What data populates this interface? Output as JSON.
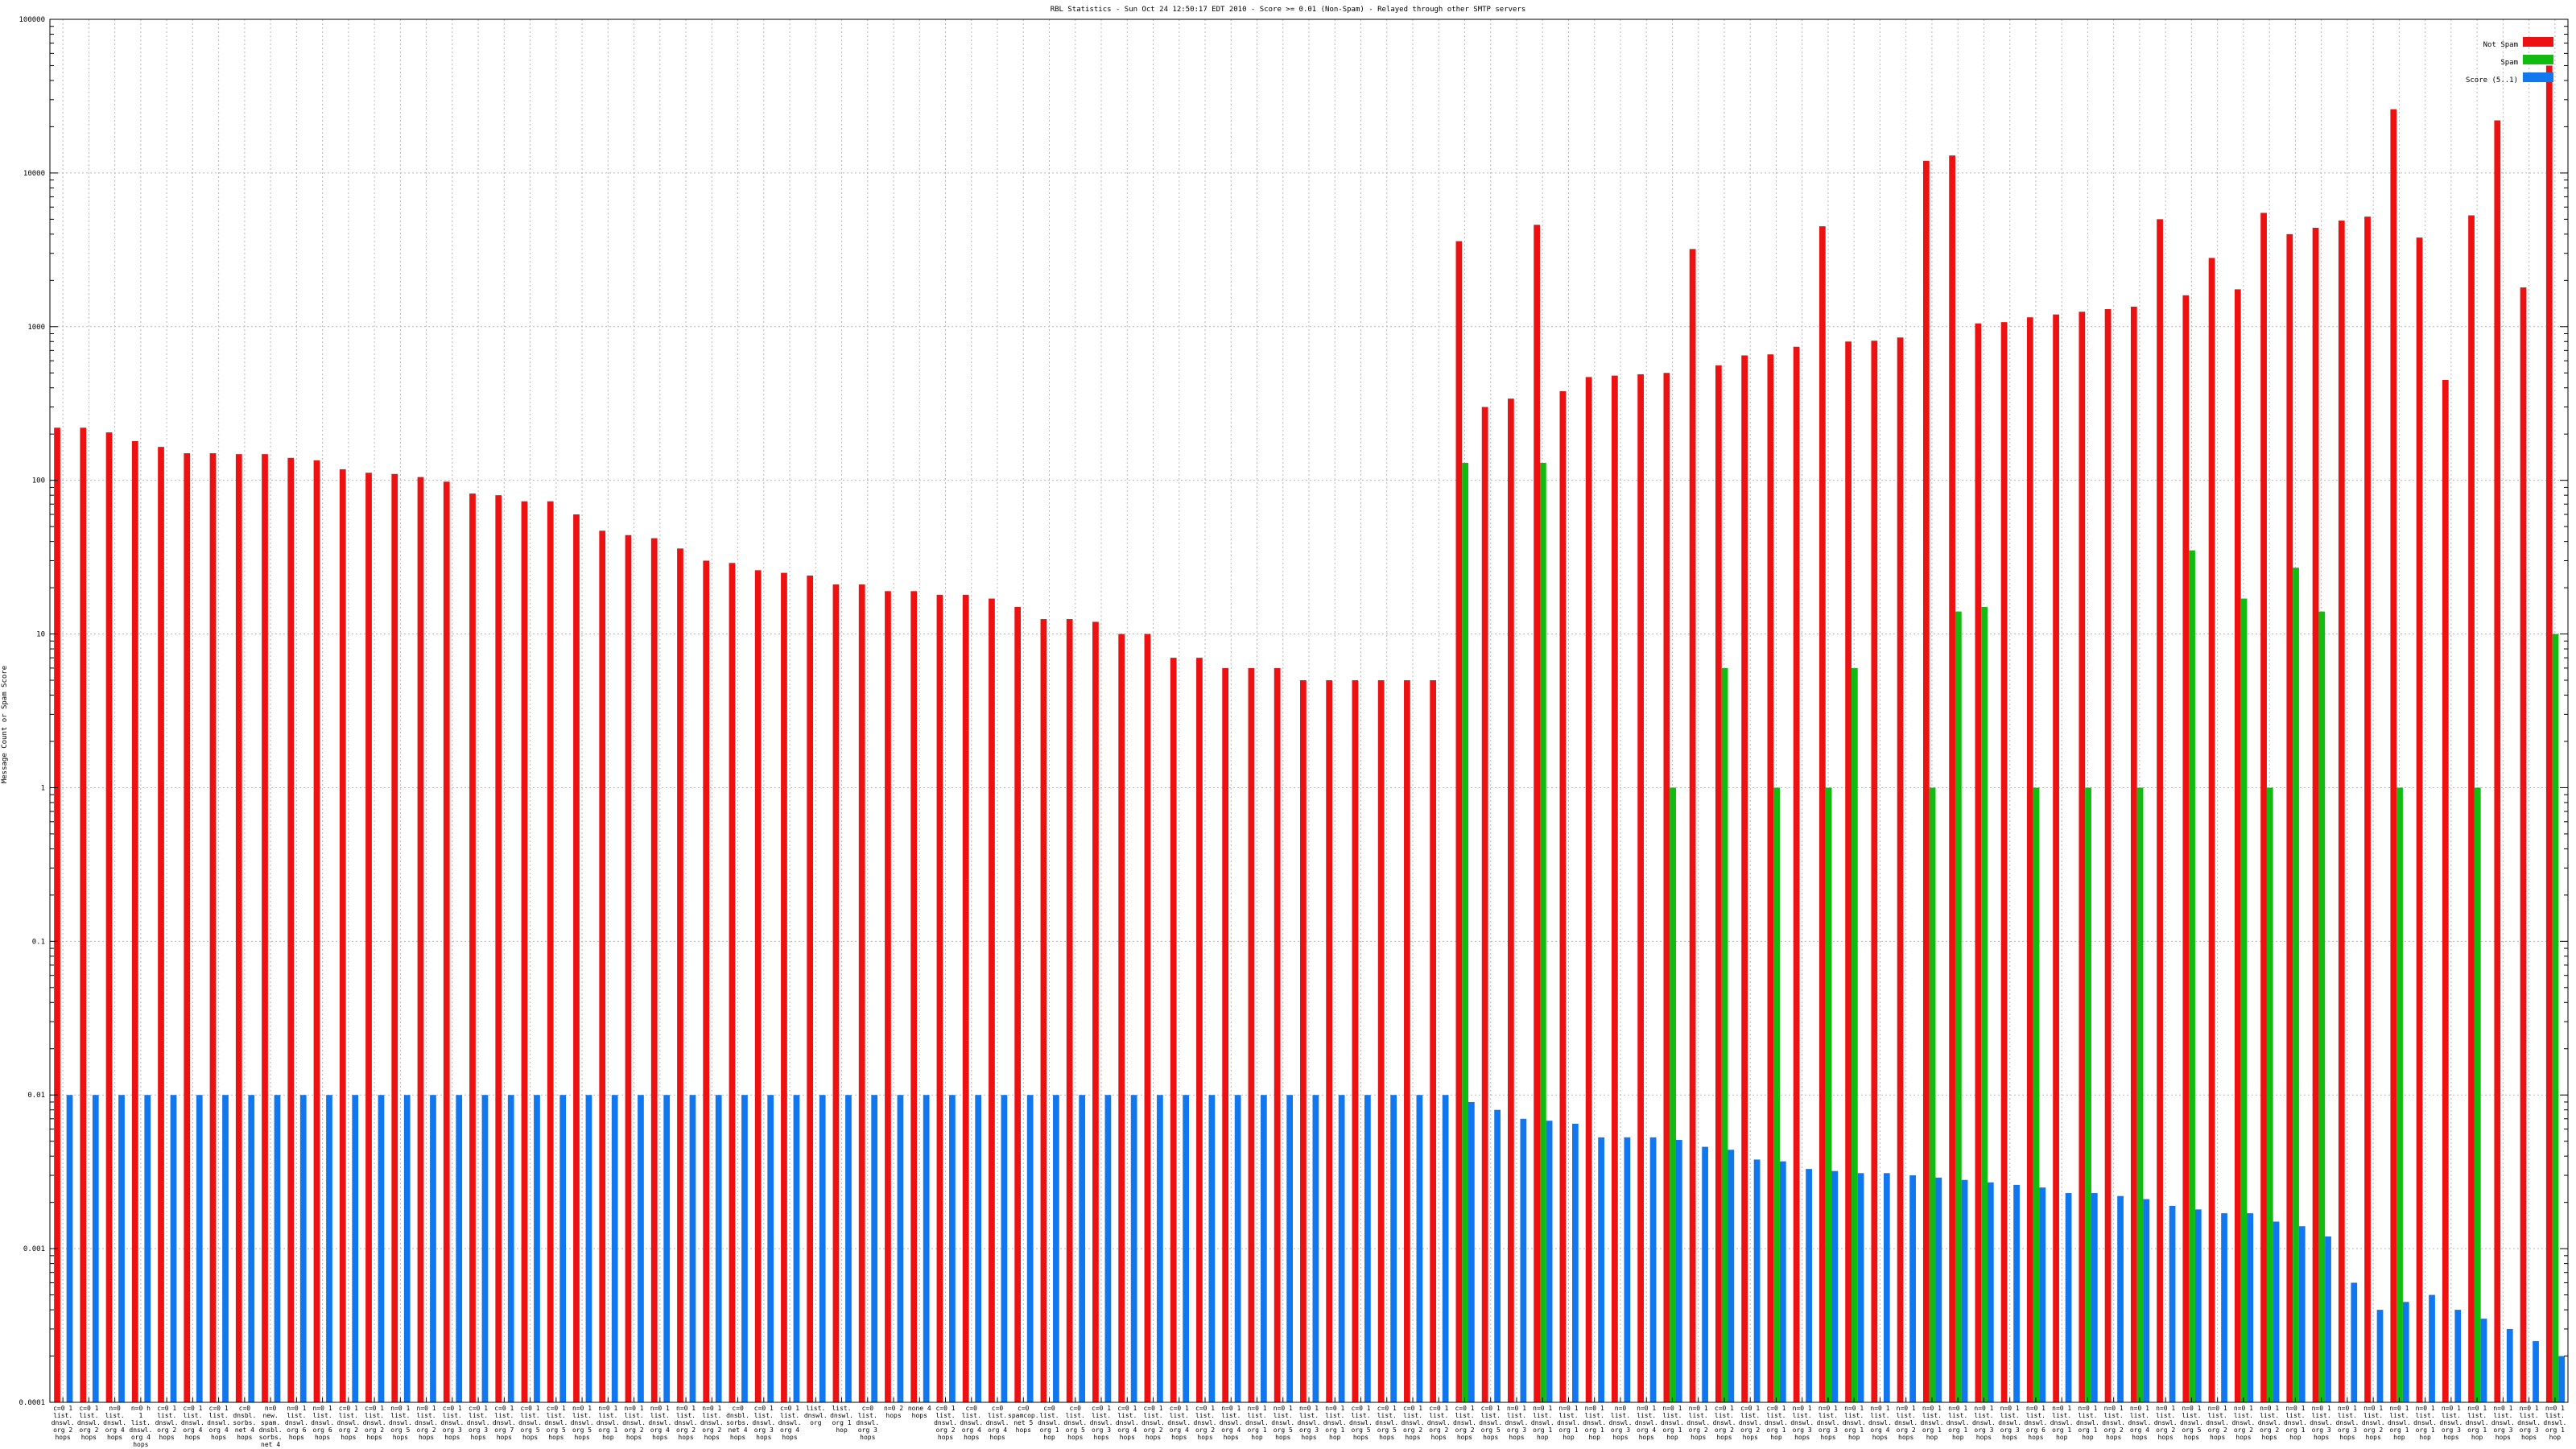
{
  "chart_data": {
    "type": "bar",
    "title": "RBL Statistics - Sun Oct 24 12:50:17 EDT 2010 - Score >= 0.01 (Non-Spam) - Relayed through other SMTP servers",
    "xlabel": "",
    "ylabel": "Message Count or Spam Score",
    "yscale": "log",
    "ylim": [
      0.0001,
      100000
    ],
    "yticks": [
      "0.0001",
      "0.001",
      "0.01",
      "0.1",
      "1",
      "10",
      "100",
      "1000",
      "10000",
      "100000"
    ],
    "grid": true,
    "legend_position": "top-right",
    "colors": {
      "not_spam": "#ee1111",
      "spam": "#11bb11",
      "score": "#1177ee"
    },
    "categories": [
      "c=0 1 list. dnswl. org 2 hops",
      "c=0 1 list. dnswl. org 2 hops",
      "n=0 list. dnswl. org 4 hops",
      "n=0 h 1 list. dnswl. org 4 hops",
      "c=0 1 list. dnswl. org 2 hops",
      "c=0 1 list. dnswl. org 4 hops",
      "c=0 1 list. dnswl. org 4 hops",
      "c=0 dnsbl. sorbs. net 4 hops",
      "n=0 new. spam. dnsbl. sorbs. net 4 hops",
      "n=0 1 list. dnswl. org 6 hops",
      "n=0 1 list. dnswl. org 6 hops",
      "c=0 1 list. dnswl. org 2 hops",
      "c=0 1 list. dnswl. org 2 hops",
      "n=0 1 list. dnswl. org 5 hops",
      "n=0 1 list. dnswl. org 2 hops",
      "c=0 1 list. dnswl. org 3 hops",
      "c=0 1 list. dnswl. org 3 hops",
      "c=0 1 list. dnswl. org 7 hops",
      "c=0 1 list. dnswl. org 5 hops",
      "c=0 1 list. dnswl. org 5 hops",
      "n=0 1 list. dnswl. org 5 hops",
      "n=0 1 list. dnswl. org 1 hop",
      "n=0 1 list. dnswl. org 2 hops",
      "n=0 1 list. dnswl. org 4 hops",
      "n=0 1 list. dnswl. org 2 hops",
      "n=0 1 list. dnswl. org 2 hops",
      "c=0 dnsbl. sorbs. net 4 hops",
      "c=0 1 list. dnswl. org 3 hops",
      "c=0 1 list. dnswl. org 4 hops",
      "list. dnswl. org",
      "list. dnswl. org 1 hop",
      "c=0 list. dnswl. org 3 hops",
      "n=0 2 hops",
      "none 4 hops",
      "c=0 1 list. dnswl. org 2 hops",
      "c=0 list. dnswl. org 4 hops",
      "c=0 list. dnswl. org 4 hops",
      "c=0 spamcop. net 5 hops",
      "c=0 list. dnswl. org 1 hop",
      "c=0 list. dnswl. org 5 hops",
      "c=0 1 list. dnswl. org 3 hops",
      "c=0 1 list. dnswl. org 4 hops",
      "c=0 1 list. dnswl. org 2 hops",
      "c=0 1 list. dnswl. org 4 hops",
      "c=0 1 list. dnswl. org 2 hops",
      "n=0 1 list. dnswl. org 4 hops",
      "n=0 1 list. dnswl. org 1 hop",
      "n=0 1 list. dnswl. org 5 hops",
      "n=0 1 list. dnswl. org 3 hops",
      "n=0 1 list. dnswl. org 1 hop",
      "c=0 1 list. dnswl. org 5 hops",
      "c=0 1 list. dnswl. org 5 hops",
      "c=0 1 list. dnswl. org 2 hops",
      "c=0 1 list. dnswl. org 2 hops",
      "c=0 1 list. dnswl. org 2 hops",
      "c=0 1 list. dnswl. org 5 hops",
      "n=0 1 list. dnswl. org 3 hops",
      "n=0 1 list. dnswl. org 1 hop",
      "n=0 1 list. dnswl. org 1 hop",
      "n=0 1 list. dnswl. org 1 hop",
      "n=0 list. dnswl. org 3 hops",
      "n=0 1 list. dnswl. org 4 hops",
      "n=0 1 list. dnswl. org 1 hop",
      "n=0 1 list. dnswl. org 2 hops",
      "c=0 1 list. dnswl. org 2 hops",
      "c=0 1 list. dnswl. org 2 hops",
      "c=0 1 list. dnswl. org 1 hop",
      "n=0 1 list. dnswl. org 3 hops",
      "n=0 1 list. dnswl. org 3 hops",
      "n=0 1 list. dnswl. org 1 hop",
      "n=0 1 list. dnswl. org 4 hops",
      "n=0 1 list. dnswl. org 2 hops",
      "n=0 1 list. dnswl. org 1 hop",
      "n=0 1 list. dnswl. org 1 hop",
      "n=0 1 list. dnswl. org 3 hops",
      "n=0 1 list. dnswl. org 3 hops",
      "n=0 1 list. dnswl. org 6 hops",
      "n=0 1 list. dnswl. org 1 hop",
      "n=0 1 list. dnswl. org 1 hop",
      "n=0 1 list. dnswl. org 2 hops",
      "n=0 1 list. dnswl. org 4 hops",
      "n=0 1 list. dnswl. org 2 hops",
      "n=0 1 list. dnswl. org 5 hops",
      "n=0 1 list. dnswl. org 2 hops",
      "n=0 1 list. dnswl. org 2 hops",
      "n=0 1 list. dnswl. org 2 hops",
      "n=0 1 list. dnswl. org 1 hop",
      "n=0 1 list. dnswl. org 3 hops",
      "n=0 1 list. dnswl. org 3 hops",
      "n=0 1 list. dnswl. org 2 hops",
      "n=0 1 list. dnswl. org 1 hop",
      "n=0 1 list. dnswl. org 1 hop",
      "n=0 1 list. dnswl. org 3 hops",
      "n=0 1 list. dnswl. org 1 hop",
      "n=0 1 list. dnswl. org 3 hops",
      "n=0 1 list. dnswl. org 3 hops",
      "n=0 1 list. dnswl. org 1 hop"
    ],
    "series": [
      {
        "name": "Not Spam",
        "values": [
          220,
          220,
          205,
          180,
          165,
          150,
          150,
          148,
          148,
          140,
          135,
          118,
          112,
          110,
          105,
          98,
          82,
          80,
          73,
          73,
          60,
          47,
          44,
          42,
          36,
          30,
          29,
          26,
          25,
          24,
          21,
          21,
          19,
          19,
          18,
          18,
          17,
          15,
          12.5,
          12.5,
          12,
          10,
          10,
          7,
          7,
          6,
          6,
          6,
          5,
          5,
          5,
          5,
          5,
          5,
          3600,
          300,
          340,
          4600,
          380,
          470,
          480,
          490,
          500,
          3200,
          560,
          650,
          660,
          740,
          4500,
          800,
          810,
          850,
          12000,
          13000,
          1050,
          1070,
          1150,
          1200,
          1250,
          1300,
          1350,
          5000,
          1600,
          2800,
          1750,
          5500,
          4000,
          4400,
          4900,
          5200,
          26000,
          3800,
          450,
          5300,
          22000,
          1800,
          50000
        ]
      },
      {
        "name": "Spam",
        "values": [
          0,
          0,
          0,
          0,
          0,
          0,
          0,
          0,
          0,
          0,
          0,
          0,
          0,
          0,
          0,
          0,
          0,
          0,
          0,
          0,
          0,
          0,
          0,
          0,
          0,
          0,
          0,
          0,
          0,
          0,
          0,
          0,
          0,
          0,
          0,
          0,
          0,
          0,
          0,
          0,
          0,
          0,
          0,
          0,
          0,
          0,
          0,
          0,
          0,
          0,
          0,
          0,
          0,
          0,
          130,
          0,
          0,
          130,
          0,
          0,
          0,
          0,
          1,
          0,
          6,
          0,
          1,
          0,
          1,
          6,
          0,
          0,
          1,
          14,
          15,
          0,
          1,
          0,
          1,
          0,
          1,
          0,
          35,
          0,
          17,
          1,
          27,
          14,
          0,
          0,
          1,
          0,
          0,
          1,
          0,
          0,
          10
        ]
      },
      {
        "name": "Score (5..1)",
        "values": [
          0.01,
          0.01,
          0.01,
          0.01,
          0.01,
          0.01,
          0.01,
          0.01,
          0.01,
          0.01,
          0.01,
          0.01,
          0.01,
          0.01,
          0.01,
          0.01,
          0.01,
          0.01,
          0.01,
          0.01,
          0.01,
          0.01,
          0.01,
          0.01,
          0.01,
          0.01,
          0.01,
          0.01,
          0.01,
          0.01,
          0.01,
          0.01,
          0.01,
          0.01,
          0.01,
          0.01,
          0.01,
          0.01,
          0.01,
          0.01,
          0.01,
          0.01,
          0.01,
          0.01,
          0.01,
          0.01,
          0.01,
          0.01,
          0.01,
          0.01,
          0.01,
          0.01,
          0.01,
          0.01,
          0.009,
          0.008,
          0.007,
          0.0068,
          0.0065,
          0.0053,
          0.0053,
          0.0053,
          0.0051,
          0.0046,
          0.0044,
          0.0038,
          0.0037,
          0.0033,
          0.0032,
          0.0031,
          0.0031,
          0.003,
          0.0029,
          0.0028,
          0.0027,
          0.0026,
          0.0025,
          0.0023,
          0.0023,
          0.0022,
          0.0021,
          0.0019,
          0.0018,
          0.0017,
          0.0017,
          0.0015,
          0.0014,
          0.0012,
          0.0006,
          0.0004,
          0.00045,
          0.0005,
          0.0004,
          0.00035,
          0.0003,
          0.00025,
          0.0002
        ]
      }
    ]
  }
}
